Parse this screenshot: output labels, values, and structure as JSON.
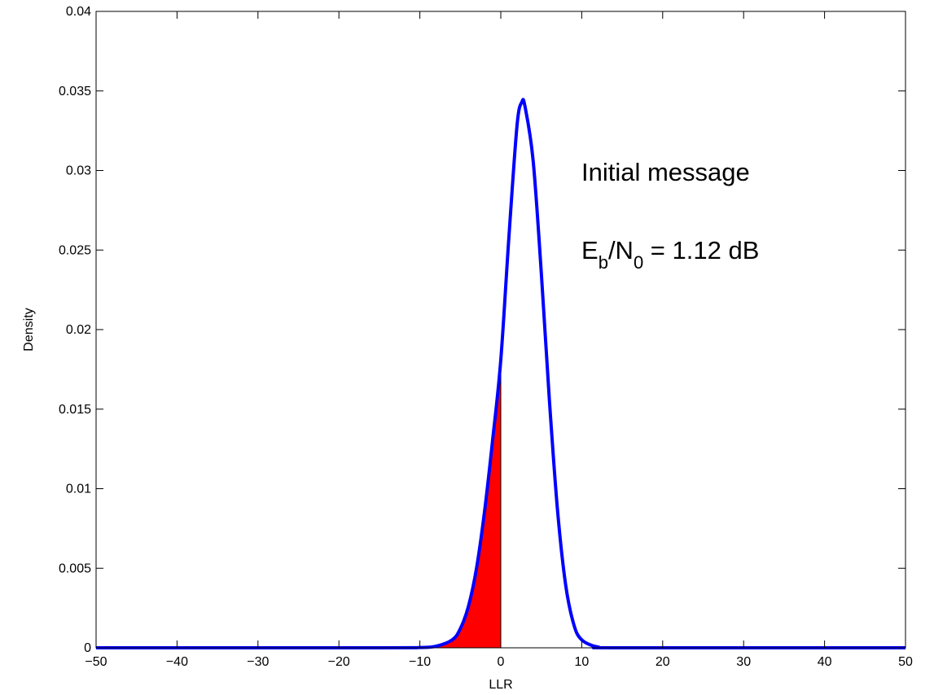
{
  "chart_data": {
    "type": "area",
    "title": "",
    "xlabel": "LLR",
    "ylabel": "Density",
    "xlim": [
      -50,
      50
    ],
    "ylim": [
      0,
      0.04
    ],
    "xticks": [
      -50,
      -40,
      -30,
      -20,
      -10,
      0,
      10,
      20,
      30,
      40,
      50
    ],
    "xtick_labels": [
      "−50",
      "−40",
      "−30",
      "−20",
      "−10",
      "0",
      "10",
      "20",
      "30",
      "40",
      "50"
    ],
    "yticks": [
      0,
      0.005,
      0.01,
      0.015,
      0.02,
      0.025,
      0.03,
      0.035,
      0.04
    ],
    "ytick_labels": [
      "0",
      "0.005",
      "0.01",
      "0.015",
      "0.02",
      "0.025",
      "0.03",
      "0.035",
      "0.04"
    ],
    "grid": false,
    "series": [
      {
        "color": "#0000ff",
        "x": [
          -50,
          -15,
          -10,
          -8,
          -6,
          -5,
          -4,
          -3,
          -2,
          -1,
          0,
          1,
          2,
          2.6,
          3,
          4,
          5,
          6,
          7,
          8,
          9,
          10,
          12,
          15,
          50
        ],
        "y": [
          0,
          0,
          2e-05,
          0.0001,
          0.0005,
          0.0012,
          0.0026,
          0.005,
          0.0086,
          0.0131,
          0.0181,
          0.0258,
          0.0328,
          0.0343,
          0.034,
          0.0306,
          0.0236,
          0.0156,
          0.0087,
          0.004,
          0.0015,
          0.0005,
          5e-05,
          0,
          0
        ]
      }
    ],
    "shaded_region": {
      "x_from": -50,
      "x_to": 0,
      "color": "#ff0000"
    },
    "annotations": [
      {
        "text": "Initial message"
      },
      {
        "parts": [
          "E",
          "b",
          "/N",
          "0",
          " = 1.12 dB"
        ]
      }
    ]
  }
}
